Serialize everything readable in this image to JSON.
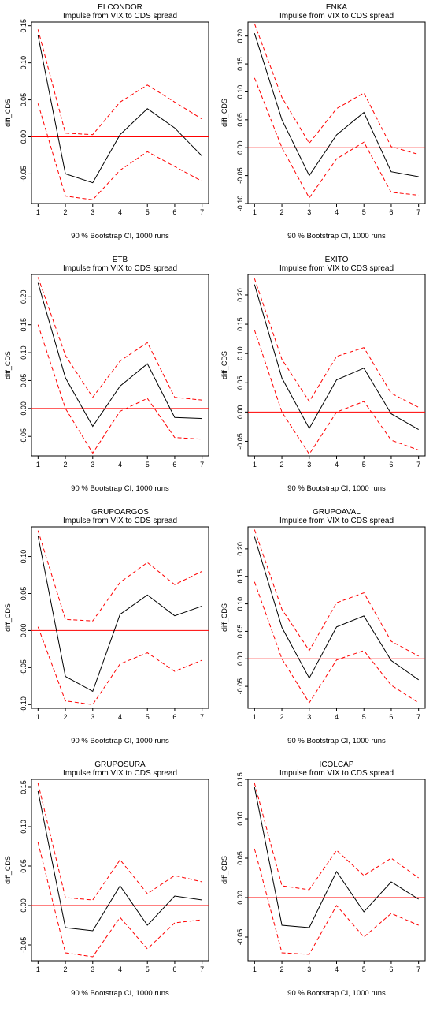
{
  "chart_data": [
    {
      "type": "line",
      "title": "ELCONDOR",
      "subtitle": "Impulse from VIX to CDS spread",
      "xlabel": "90 % Bootstrap CI,  1000 runs",
      "ylabel": "diff_CDS",
      "x": [
        1,
        2,
        3,
        4,
        5,
        6,
        7
      ],
      "ylim": [
        -0.09,
        0.155
      ],
      "yticks": [
        -0.05,
        0.0,
        0.05,
        0.1,
        0.15
      ],
      "ytick_labels": [
        "-0.05",
        "0.00",
        "0.05",
        "0.10",
        "0.15"
      ],
      "series": [
        {
          "color": "#000000",
          "dashed": false,
          "values": [
            0.137,
            -0.05,
            -0.062,
            0.003,
            0.038,
            0.012,
            -0.026
          ]
        },
        {
          "color": "#ff0000",
          "dashed": true,
          "values": [
            0.145,
            0.005,
            0.003,
            0.047,
            0.07,
            0.047,
            0.024
          ]
        },
        {
          "color": "#ff0000",
          "dashed": true,
          "values": [
            0.045,
            -0.08,
            -0.085,
            -0.045,
            -0.02,
            -0.04,
            -0.06
          ]
        }
      ],
      "hline": {
        "value": 0,
        "color": "#ff0000"
      },
      "grid": false
    },
    {
      "type": "line",
      "title": "ENKA",
      "subtitle": "Impulse from VIX to CDS spread",
      "xlabel": "90 % Bootstrap CI,  1000 runs",
      "ylabel": "diff_CDS",
      "x": [
        1,
        2,
        3,
        4,
        5,
        6,
        7
      ],
      "ylim": [
        -0.1,
        0.225
      ],
      "yticks": [
        -0.1,
        -0.05,
        0.0,
        0.05,
        0.1,
        0.15,
        0.2
      ],
      "ytick_labels": [
        "-0.10",
        "-0.05",
        "0.00",
        "0.05",
        "0.10",
        "0.15",
        "0.20"
      ],
      "series": [
        {
          "color": "#000000",
          "dashed": false,
          "values": [
            0.205,
            0.05,
            -0.05,
            0.023,
            0.063,
            -0.043,
            -0.052
          ]
        },
        {
          "color": "#ff0000",
          "dashed": true,
          "values": [
            0.222,
            0.09,
            0.008,
            0.07,
            0.098,
            0.002,
            -0.012
          ]
        },
        {
          "color": "#ff0000",
          "dashed": true,
          "values": [
            0.125,
            0.0,
            -0.09,
            -0.02,
            0.01,
            -0.08,
            -0.085
          ]
        }
      ],
      "hline": {
        "value": 0,
        "color": "#ff0000"
      },
      "grid": false
    },
    {
      "type": "line",
      "title": "ETB",
      "subtitle": "Impulse from VIX to CDS spread",
      "xlabel": "90 % Bootstrap CI,  1000 runs",
      "ylabel": "diff_CDS",
      "x": [
        1,
        2,
        3,
        4,
        5,
        6,
        7
      ],
      "ylim": [
        -0.085,
        0.24
      ],
      "yticks": [
        -0.05,
        0.0,
        0.05,
        0.1,
        0.15,
        0.2
      ],
      "ytick_labels": [
        "-0.05",
        "0.00",
        "0.05",
        "0.10",
        "0.15",
        "0.20"
      ],
      "series": [
        {
          "color": "#000000",
          "dashed": false,
          "values": [
            0.225,
            0.055,
            -0.032,
            0.04,
            0.08,
            -0.016,
            -0.018
          ]
        },
        {
          "color": "#ff0000",
          "dashed": true,
          "values": [
            0.235,
            0.095,
            0.02,
            0.085,
            0.118,
            0.02,
            0.015
          ]
        },
        {
          "color": "#ff0000",
          "dashed": true,
          "values": [
            0.15,
            0.0,
            -0.08,
            -0.005,
            0.018,
            -0.052,
            -0.055
          ]
        }
      ],
      "hline": {
        "value": 0,
        "color": "#ff0000"
      },
      "grid": false
    },
    {
      "type": "line",
      "title": "EXITO",
      "subtitle": "Impulse from VIX to CDS spread",
      "xlabel": "90 % Bootstrap CI,  1000 runs",
      "ylabel": "diff_CDS",
      "x": [
        1,
        2,
        3,
        4,
        5,
        6,
        7
      ],
      "ylim": [
        -0.075,
        0.235
      ],
      "yticks": [
        -0.05,
        0.0,
        0.05,
        0.1,
        0.15,
        0.2
      ],
      "ytick_labels": [
        "-0.05",
        "0.00",
        "0.05",
        "0.10",
        "0.15",
        "0.20"
      ],
      "series": [
        {
          "color": "#000000",
          "dashed": false,
          "values": [
            0.218,
            0.058,
            -0.028,
            0.055,
            0.075,
            -0.003,
            -0.03
          ]
        },
        {
          "color": "#ff0000",
          "dashed": true,
          "values": [
            0.228,
            0.09,
            0.018,
            0.095,
            0.11,
            0.032,
            0.008
          ]
        },
        {
          "color": "#ff0000",
          "dashed": true,
          "values": [
            0.14,
            0.0,
            -0.072,
            0.0,
            0.018,
            -0.048,
            -0.065
          ]
        }
      ],
      "hline": {
        "value": 0,
        "color": "#ff0000"
      },
      "grid": false
    },
    {
      "type": "line",
      "title": "GRUPOARGOS",
      "subtitle": "Impulse from VIX to CDS spread",
      "xlabel": "90 % Bootstrap CI,  1000 runs",
      "ylabel": "diff_CDS",
      "x": [
        1,
        2,
        3,
        4,
        5,
        6,
        7
      ],
      "ylim": [
        -0.105,
        0.14
      ],
      "yticks": [
        -0.1,
        -0.05,
        0.0,
        0.05,
        0.1
      ],
      "ytick_labels": [
        "-0.10",
        "-0.05",
        "0.00",
        "0.05",
        "0.10"
      ],
      "series": [
        {
          "color": "#000000",
          "dashed": false,
          "values": [
            0.128,
            -0.062,
            -0.082,
            0.022,
            0.048,
            0.02,
            0.033
          ]
        },
        {
          "color": "#ff0000",
          "dashed": true,
          "values": [
            0.135,
            0.015,
            0.013,
            0.065,
            0.092,
            0.062,
            0.08
          ]
        },
        {
          "color": "#ff0000",
          "dashed": true,
          "values": [
            0.005,
            -0.095,
            -0.1,
            -0.045,
            -0.03,
            -0.055,
            -0.04
          ]
        }
      ],
      "hline": {
        "value": 0,
        "color": "#ff0000"
      },
      "grid": false
    },
    {
      "type": "line",
      "title": "GRUPOAVAL",
      "subtitle": "Impulse from VIX to CDS spread",
      "xlabel": "90 % Bootstrap CI,  1000 runs",
      "ylabel": "diff_CDS",
      "x": [
        1,
        2,
        3,
        4,
        5,
        6,
        7
      ],
      "ylim": [
        -0.09,
        0.24
      ],
      "yticks": [
        -0.05,
        0.0,
        0.05,
        0.1,
        0.15,
        0.2
      ],
      "ytick_labels": [
        "-0.05",
        "0.00",
        "0.05",
        "0.10",
        "0.15",
        "0.20"
      ],
      "series": [
        {
          "color": "#000000",
          "dashed": false,
          "values": [
            0.222,
            0.057,
            -0.035,
            0.058,
            0.078,
            -0.003,
            -0.038
          ]
        },
        {
          "color": "#ff0000",
          "dashed": true,
          "values": [
            0.235,
            0.09,
            0.015,
            0.102,
            0.12,
            0.032,
            0.005
          ]
        },
        {
          "color": "#ff0000",
          "dashed": true,
          "values": [
            0.14,
            0.0,
            -0.08,
            -0.002,
            0.015,
            -0.048,
            -0.08
          ]
        }
      ],
      "hline": {
        "value": 0,
        "color": "#ff0000"
      },
      "grid": false
    },
    {
      "type": "line",
      "title": "GRUPOSURA",
      "subtitle": "Impulse from VIX to CDS spread",
      "xlabel": "90 % Bootstrap CI,  1000 runs",
      "ylabel": "diff_CDS",
      "x": [
        1,
        2,
        3,
        4,
        5,
        6,
        7
      ],
      "ylim": [
        -0.07,
        0.16
      ],
      "yticks": [
        -0.05,
        0.0,
        0.05,
        0.1,
        0.15
      ],
      "ytick_labels": [
        "-0.05",
        "0.00",
        "0.05",
        "0.10",
        "0.15"
      ],
      "series": [
        {
          "color": "#000000",
          "dashed": false,
          "values": [
            0.145,
            -0.028,
            -0.032,
            0.025,
            -0.025,
            0.012,
            0.007
          ]
        },
        {
          "color": "#ff0000",
          "dashed": true,
          "values": [
            0.155,
            0.01,
            0.007,
            0.058,
            0.015,
            0.038,
            0.03
          ]
        },
        {
          "color": "#ff0000",
          "dashed": true,
          "values": [
            0.08,
            -0.06,
            -0.065,
            -0.015,
            -0.055,
            -0.022,
            -0.018
          ]
        }
      ],
      "hline": {
        "value": 0,
        "color": "#ff0000"
      },
      "grid": false
    },
    {
      "type": "line",
      "title": "ICOLCAP",
      "subtitle": "Impulse from VIX to CDS spread",
      "xlabel": "90 % Bootstrap CI,  1000 runs",
      "ylabel": "diff_CDS",
      "x": [
        1,
        2,
        3,
        4,
        5,
        6,
        7
      ],
      "ylim": [
        -0.08,
        0.15
      ],
      "yticks": [
        -0.05,
        0.0,
        0.05,
        0.1,
        0.15
      ],
      "ytick_labels": [
        "-0.05",
        "0.00",
        "0.05",
        "0.10",
        "0.15"
      ],
      "series": [
        {
          "color": "#000000",
          "dashed": false,
          "values": [
            0.14,
            -0.035,
            -0.038,
            0.033,
            -0.018,
            0.02,
            -0.002
          ]
        },
        {
          "color": "#ff0000",
          "dashed": true,
          "values": [
            0.145,
            0.015,
            0.01,
            0.06,
            0.028,
            0.05,
            0.025
          ]
        },
        {
          "color": "#ff0000",
          "dashed": true,
          "values": [
            0.062,
            -0.07,
            -0.072,
            -0.01,
            -0.05,
            -0.02,
            -0.035
          ]
        }
      ],
      "hline": {
        "value": 0,
        "color": "#ff0000"
      },
      "grid": false
    }
  ]
}
